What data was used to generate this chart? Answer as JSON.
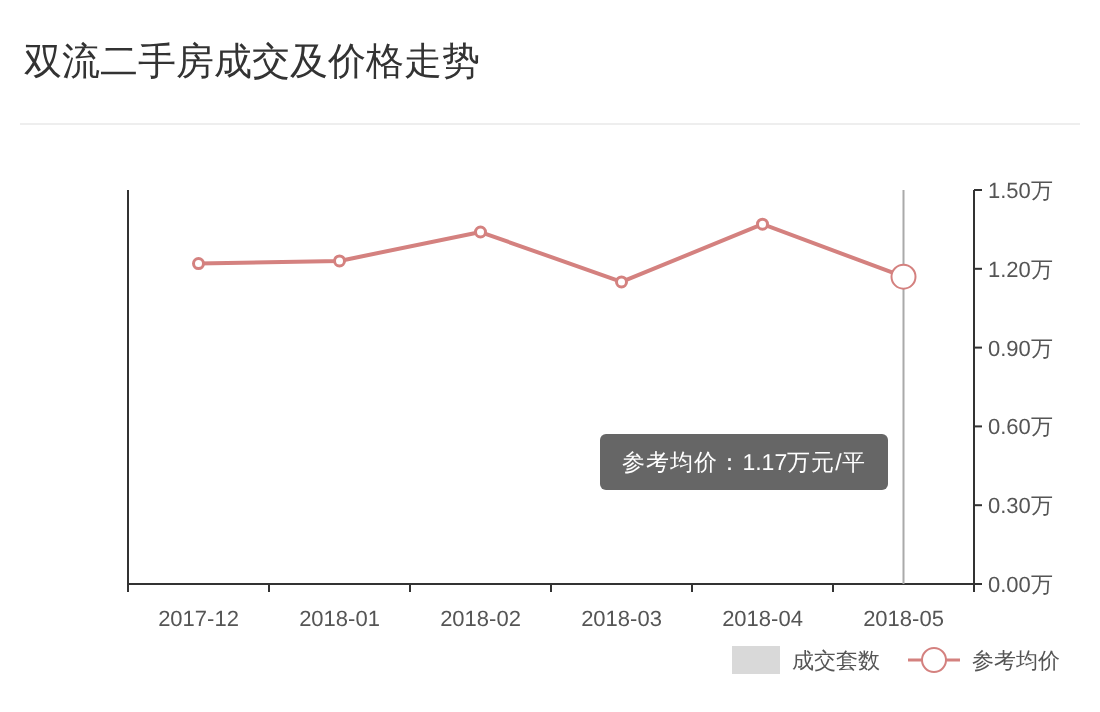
{
  "chart_data": {
    "type": "line",
    "title": "双流二手房成交及价格走势",
    "categories": [
      "2017-12",
      "2018-01",
      "2018-02",
      "2018-03",
      "2018-04",
      "2018-05"
    ],
    "series": [
      {
        "name": "成交套数",
        "type": "bar",
        "color": "#d9d9d9",
        "values": [
          null,
          null,
          null,
          null,
          null,
          null
        ]
      },
      {
        "name": "参考均价",
        "color": "#d4817f",
        "values": [
          1.22,
          1.23,
          1.34,
          1.15,
          1.37,
          1.17
        ]
      }
    ],
    "ylim": [
      0,
      1.5
    ],
    "yticks": [
      {
        "value": 0,
        "label": "0.00万"
      },
      {
        "value": 0.3,
        "label": "0.30万"
      },
      {
        "value": 0.6,
        "label": "0.60万"
      },
      {
        "value": 0.9,
        "label": "0.90万"
      },
      {
        "value": 1.2,
        "label": "1.20万"
      },
      {
        "value": 1.5,
        "label": "1.50万"
      }
    ],
    "ref_lines": [
      {
        "axis": "x",
        "value": "2018-05",
        "color": "#aaaaaa"
      }
    ],
    "annotations": [
      "参考均价：1.17万元/平"
    ],
    "marker": "circle",
    "legend": "bottom right",
    "grid": false
  }
}
